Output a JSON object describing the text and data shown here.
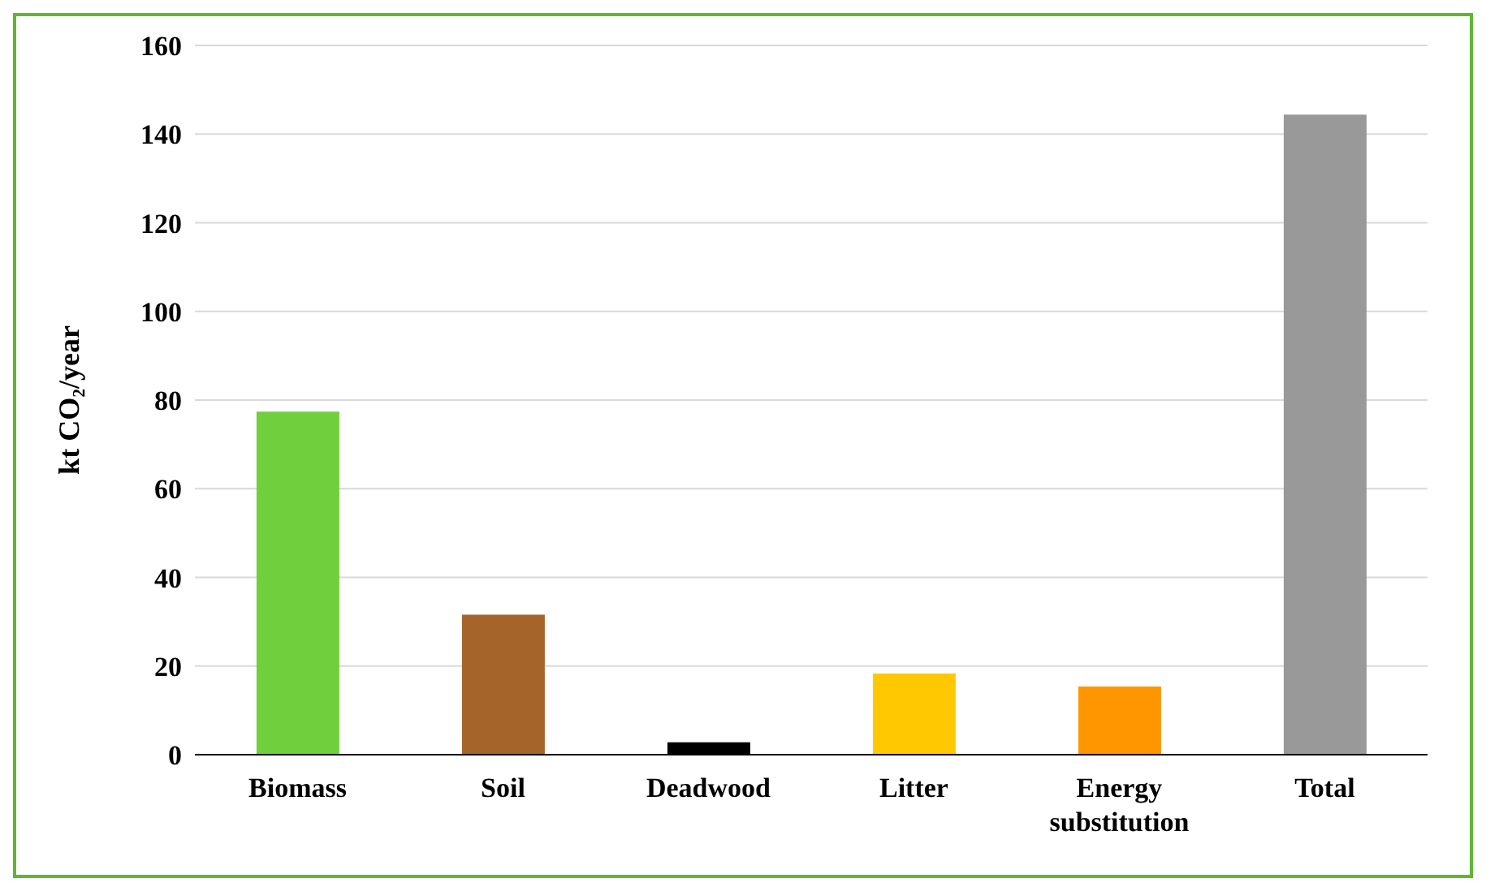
{
  "chart_data": {
    "type": "bar",
    "ylabel": "kt CO₂/year",
    "categories": [
      "Biomass",
      "Soil",
      "Deadwood",
      "Litter",
      "Energy substitution",
      "Total"
    ],
    "values": [
      77.4,
      31.6,
      2.8,
      18.3,
      15.4,
      144.4
    ],
    "colors": [
      "#70cf3c",
      "#a5642a",
      "#000000",
      "#ffc800",
      "#ff9600",
      "#999999"
    ],
    "ylim": [
      0,
      160
    ],
    "yticks": [
      0,
      20,
      40,
      60,
      80,
      100,
      120,
      140,
      160
    ],
    "grid": "y"
  }
}
